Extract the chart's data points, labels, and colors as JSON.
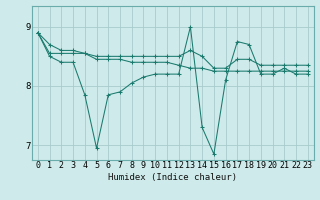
{
  "xlabel": "Humidex (Indice chaleur)",
  "ylabel": "",
  "bg_color": "#ceeaea",
  "line_color": "#1a7a6e",
  "grid_color": "#a8cccc",
  "axis_color": "#6aabab",
  "ylim": [
    6.75,
    9.35
  ],
  "xlim": [
    -0.5,
    23.5
  ],
  "xticks": [
    0,
    1,
    2,
    3,
    4,
    5,
    6,
    7,
    8,
    9,
    10,
    11,
    12,
    13,
    14,
    15,
    16,
    17,
    18,
    19,
    20,
    21,
    22,
    23
  ],
  "yticks": [
    7,
    8,
    9
  ],
  "series": [
    [
      8.9,
      8.5,
      8.4,
      8.4,
      7.85,
      6.95,
      7.85,
      7.9,
      8.05,
      8.15,
      8.2,
      8.2,
      8.2,
      9.0,
      7.3,
      6.85,
      8.1,
      8.75,
      8.7,
      8.2,
      8.2,
      8.3,
      8.2,
      8.2
    ],
    [
      8.9,
      8.55,
      8.55,
      8.55,
      8.55,
      8.5,
      8.5,
      8.5,
      8.5,
      8.5,
      8.5,
      8.5,
      8.5,
      8.6,
      8.5,
      8.3,
      8.3,
      8.45,
      8.45,
      8.35,
      8.35,
      8.35,
      8.35,
      8.35
    ],
    [
      8.9,
      8.7,
      8.6,
      8.6,
      8.55,
      8.45,
      8.45,
      8.45,
      8.4,
      8.4,
      8.4,
      8.4,
      8.35,
      8.3,
      8.3,
      8.25,
      8.25,
      8.25,
      8.25,
      8.25,
      8.25,
      8.25,
      8.25,
      8.25
    ]
  ],
  "xlabel_fontsize": 6.5,
  "tick_fontsize": 6.0,
  "ytick_fontsize": 6.5
}
